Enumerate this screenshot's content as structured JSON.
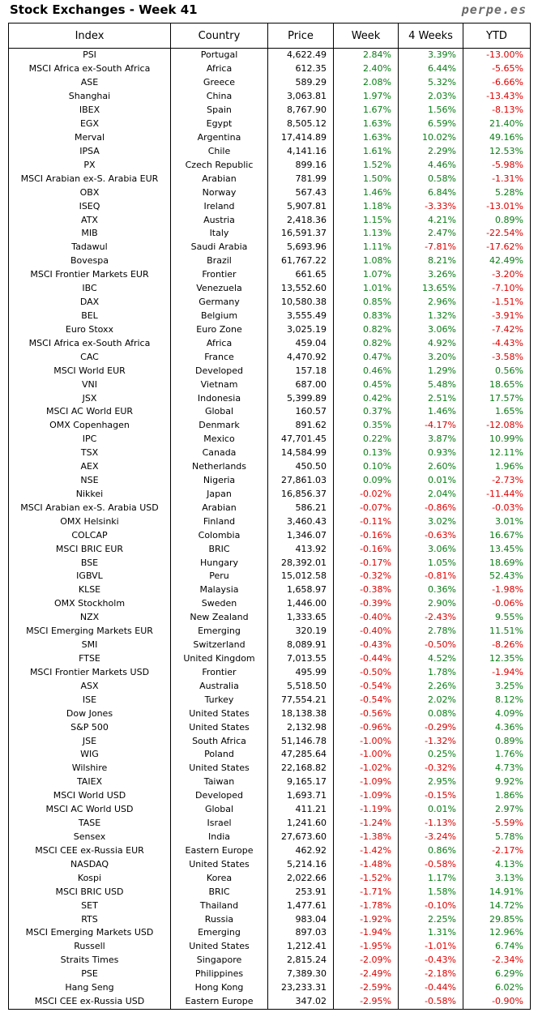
{
  "header": {
    "title": "Stock Exchanges - Week 41",
    "brand": "perpe.es"
  },
  "colors": {
    "positive": "#0a7d16",
    "negative": "#e00000"
  },
  "table": {
    "columns": [
      "Index",
      "Country",
      "Price",
      "Week",
      "4 Weeks",
      "YTD"
    ],
    "rows": [
      [
        "PSI",
        "Portugal",
        "4,622.49",
        "2.84%",
        "3.39%",
        "-13.00%"
      ],
      [
        "MSCI Africa ex-South Africa",
        "Africa",
        "612.35",
        "2.40%",
        "6.44%",
        "-5.65%"
      ],
      [
        "ASE",
        "Greece",
        "589.29",
        "2.08%",
        "5.32%",
        "-6.66%"
      ],
      [
        "Shanghai",
        "China",
        "3,063.81",
        "1.97%",
        "2.03%",
        "-13.43%"
      ],
      [
        "IBEX",
        "Spain",
        "8,767.90",
        "1.67%",
        "1.56%",
        "-8.13%"
      ],
      [
        "EGX",
        "Egypt",
        "8,505.12",
        "1.63%",
        "6.59%",
        "21.40%"
      ],
      [
        "Merval",
        "Argentina",
        "17,414.89",
        "1.63%",
        "10.02%",
        "49.16%"
      ],
      [
        "IPSA",
        "Chile",
        "4,141.16",
        "1.61%",
        "2.29%",
        "12.53%"
      ],
      [
        "PX",
        "Czech Republic",
        "899.16",
        "1.52%",
        "4.46%",
        "-5.98%"
      ],
      [
        "MSCI Arabian ex-S. Arabia EUR",
        "Arabian",
        "781.99",
        "1.50%",
        "0.58%",
        "-1.31%"
      ],
      [
        "OBX",
        "Norway",
        "567.43",
        "1.46%",
        "6.84%",
        "5.28%"
      ],
      [
        "ISEQ",
        "Ireland",
        "5,907.81",
        "1.18%",
        "-3.33%",
        "-13.01%"
      ],
      [
        "ATX",
        "Austria",
        "2,418.36",
        "1.15%",
        "4.21%",
        "0.89%"
      ],
      [
        "MIB",
        "Italy",
        "16,591.37",
        "1.13%",
        "2.47%",
        "-22.54%"
      ],
      [
        "Tadawul",
        "Saudi Arabia",
        "5,693.96",
        "1.11%",
        "-7.81%",
        "-17.62%"
      ],
      [
        "Bovespa",
        "Brazil",
        "61,767.22",
        "1.08%",
        "8.21%",
        "42.49%"
      ],
      [
        "MSCI Frontier Markets EUR",
        "Frontier",
        "661.65",
        "1.07%",
        "3.26%",
        "-3.20%"
      ],
      [
        "IBC",
        "Venezuela",
        "13,552.60",
        "1.01%",
        "13.65%",
        "-7.10%"
      ],
      [
        "DAX",
        "Germany",
        "10,580.38",
        "0.85%",
        "2.96%",
        "-1.51%"
      ],
      [
        "BEL",
        "Belgium",
        "3,555.49",
        "0.83%",
        "1.32%",
        "-3.91%"
      ],
      [
        "Euro Stoxx",
        "Euro Zone",
        "3,025.19",
        "0.82%",
        "3.06%",
        "-7.42%"
      ],
      [
        "MSCI Africa ex-South Africa",
        "Africa",
        "459.04",
        "0.82%",
        "4.92%",
        "-4.43%"
      ],
      [
        "CAC",
        "France",
        "4,470.92",
        "0.47%",
        "3.20%",
        "-3.58%"
      ],
      [
        "MSCI World EUR",
        "Developed",
        "157.18",
        "0.46%",
        "1.29%",
        "0.56%"
      ],
      [
        "VNI",
        "Vietnam",
        "687.00",
        "0.45%",
        "5.48%",
        "18.65%"
      ],
      [
        "JSX",
        "Indonesia",
        "5,399.89",
        "0.42%",
        "2.51%",
        "17.57%"
      ],
      [
        "MSCI AC World EUR",
        "Global",
        "160.57",
        "0.37%",
        "1.46%",
        "1.65%"
      ],
      [
        "OMX Copenhagen",
        "Denmark",
        "891.62",
        "0.35%",
        "-4.17%",
        "-12.08%"
      ],
      [
        "IPC",
        "Mexico",
        "47,701.45",
        "0.22%",
        "3.87%",
        "10.99%"
      ],
      [
        "TSX",
        "Canada",
        "14,584.99",
        "0.13%",
        "0.93%",
        "12.11%"
      ],
      [
        "AEX",
        "Netherlands",
        "450.50",
        "0.10%",
        "2.60%",
        "1.96%"
      ],
      [
        "NSE",
        "Nigeria",
        "27,861.03",
        "0.09%",
        "0.01%",
        "-2.73%"
      ],
      [
        "Nikkei",
        "Japan",
        "16,856.37",
        "-0.02%",
        "2.04%",
        "-11.44%"
      ],
      [
        "MSCI Arabian ex-S. Arabia USD",
        "Arabian",
        "586.21",
        "-0.07%",
        "-0.86%",
        "-0.03%"
      ],
      [
        "OMX Helsinki",
        "Finland",
        "3,460.43",
        "-0.11%",
        "3.02%",
        "3.01%"
      ],
      [
        "COLCAP",
        "Colombia",
        "1,346.07",
        "-0.16%",
        "-0.63%",
        "16.67%"
      ],
      [
        "MSCI BRIC EUR",
        "BRIC",
        "413.92",
        "-0.16%",
        "3.06%",
        "13.45%"
      ],
      [
        "BSE",
        "Hungary",
        "28,392.01",
        "-0.17%",
        "1.05%",
        "18.69%"
      ],
      [
        "IGBVL",
        "Peru",
        "15,012.58",
        "-0.32%",
        "-0.81%",
        "52.43%"
      ],
      [
        "KLSE",
        "Malaysia",
        "1,658.97",
        "-0.38%",
        "0.36%",
        "-1.98%"
      ],
      [
        "OMX Stockholm",
        "Sweden",
        "1,446.00",
        "-0.39%",
        "2.90%",
        "-0.06%"
      ],
      [
        "NZX",
        "New Zealand",
        "1,333.65",
        "-0.40%",
        "-2.43%",
        "9.55%"
      ],
      [
        "MSCI Emerging Markets EUR",
        "Emerging",
        "320.19",
        "-0.40%",
        "2.78%",
        "11.51%"
      ],
      [
        "SMI",
        "Switzerland",
        "8,089.91",
        "-0.43%",
        "-0.50%",
        "-8.26%"
      ],
      [
        "FTSE",
        "United Kingdom",
        "7,013.55",
        "-0.44%",
        "4.52%",
        "12.35%"
      ],
      [
        "MSCI Frontier Markets USD",
        "Frontier",
        "495.99",
        "-0.50%",
        "1.78%",
        "-1.94%"
      ],
      [
        "ASX",
        "Australia",
        "5,518.50",
        "-0.54%",
        "2.26%",
        "3.25%"
      ],
      [
        "ISE",
        "Turkey",
        "77,554.21",
        "-0.54%",
        "2.02%",
        "8.12%"
      ],
      [
        "Dow Jones",
        "United States",
        "18,138.38",
        "-0.56%",
        "0.08%",
        "4.09%"
      ],
      [
        "S&P 500",
        "United States",
        "2,132.98",
        "-0.96%",
        "-0.29%",
        "4.36%"
      ],
      [
        "JSE",
        "South Africa",
        "51,146.78",
        "-1.00%",
        "-1.32%",
        "0.89%"
      ],
      [
        "WIG",
        "Poland",
        "47,285.64",
        "-1.00%",
        "0.25%",
        "1.76%"
      ],
      [
        "Wilshire",
        "United States",
        "22,168.82",
        "-1.02%",
        "-0.32%",
        "4.73%"
      ],
      [
        "TAIEX",
        "Taiwan",
        "9,165.17",
        "-1.09%",
        "2.95%",
        "9.92%"
      ],
      [
        "MSCI World USD",
        "Developed",
        "1,693.71",
        "-1.09%",
        "-0.15%",
        "1.86%"
      ],
      [
        "MSCI AC World USD",
        "Global",
        "411.21",
        "-1.19%",
        "0.01%",
        "2.97%"
      ],
      [
        "TASE",
        "Israel",
        "1,241.60",
        "-1.24%",
        "-1.13%",
        "-5.59%"
      ],
      [
        "Sensex",
        "India",
        "27,673.60",
        "-1.38%",
        "-3.24%",
        "5.78%"
      ],
      [
        "MSCI CEE ex-Russia EUR",
        "Eastern Europe",
        "462.92",
        "-1.42%",
        "0.86%",
        "-2.17%"
      ],
      [
        "NASDAQ",
        "United States",
        "5,214.16",
        "-1.48%",
        "-0.58%",
        "4.13%"
      ],
      [
        "Kospi",
        "Korea",
        "2,022.66",
        "-1.52%",
        "1.17%",
        "3.13%"
      ],
      [
        "MSCI BRIC USD",
        "BRIC",
        "253.91",
        "-1.71%",
        "1.58%",
        "14.91%"
      ],
      [
        "SET",
        "Thailand",
        "1,477.61",
        "-1.78%",
        "-0.10%",
        "14.72%"
      ],
      [
        "RTS",
        "Russia",
        "983.04",
        "-1.92%",
        "2.25%",
        "29.85%"
      ],
      [
        "MSCI Emerging Markets USD",
        "Emerging",
        "897.03",
        "-1.94%",
        "1.31%",
        "12.96%"
      ],
      [
        "Russell",
        "United States",
        "1,212.41",
        "-1.95%",
        "-1.01%",
        "6.74%"
      ],
      [
        "Straits Times",
        "Singapore",
        "2,815.24",
        "-2.09%",
        "-0.43%",
        "-2.34%"
      ],
      [
        "PSE",
        "Philippines",
        "7,389.30",
        "-2.49%",
        "-2.18%",
        "6.29%"
      ],
      [
        "Hang Seng",
        "Hong Kong",
        "23,233.31",
        "-2.59%",
        "-0.44%",
        "6.02%"
      ],
      [
        "MSCI CEE ex-Russia USD",
        "Eastern Europe",
        "347.02",
        "-2.95%",
        "-0.58%",
        "-0.90%"
      ]
    ]
  }
}
